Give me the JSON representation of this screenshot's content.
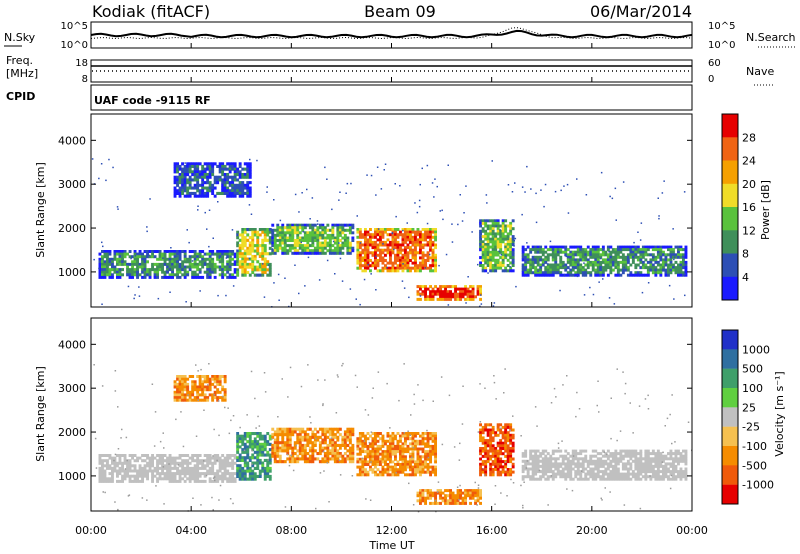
{
  "header": {
    "radar": "Kodiak (fitACF)",
    "beam": "Beam 09",
    "date": "06/Mar/2014"
  },
  "noise_panel": {
    "left_label": "N.Sky",
    "right_label": "N.Search",
    "left_ticks": [
      "10^5",
      "10^0"
    ],
    "right_ticks": [
      "10^5",
      "10^0"
    ]
  },
  "freq_panel": {
    "left_label_1": "Freq.",
    "left_label_2": "[MHz]",
    "right_label": "Nave",
    "left_ticks": [
      "18",
      "8"
    ],
    "right_ticks": [
      "60",
      "0"
    ]
  },
  "cpid_panel": {
    "label": "CPID",
    "text": "UAF code -9115 RF"
  },
  "chart_data": [
    {
      "type": "heatmap",
      "name": "power",
      "ylabel": "Slant Range [km]",
      "yticks": [
        1000,
        2000,
        3000,
        4000
      ],
      "ylim": [
        200,
        4600
      ],
      "xlim": [
        0,
        24
      ],
      "colorbar_label": "Power [dB]",
      "colorbar_ticks": [
        "4",
        "8",
        "12",
        "16",
        "20",
        "24",
        "28"
      ],
      "colorbar_colors": [
        "#1a1aff",
        "#2d4fb5",
        "#3f8f5a",
        "#59c23c",
        "#f0dc28",
        "#f5a000",
        "#f06414",
        "#e60000"
      ],
      "regions": [
        {
          "t0": 0.3,
          "t1": 5.8,
          "r0": 850,
          "r1": 1500,
          "value": 10
        },
        {
          "t0": 3.3,
          "t1": 6.4,
          "r0": 2700,
          "r1": 3500,
          "value": 6
        },
        {
          "t0": 5.8,
          "t1": 7.2,
          "r0": 900,
          "r1": 2000,
          "value": 16
        },
        {
          "t0": 7.2,
          "t1": 10.5,
          "r0": 1400,
          "r1": 2100,
          "value": 14
        },
        {
          "t0": 10.6,
          "t1": 13.8,
          "r0": 1000,
          "r1": 2000,
          "value": 24
        },
        {
          "t0": 13.0,
          "t1": 15.6,
          "r0": 350,
          "r1": 700,
          "value": 28
        },
        {
          "t0": 15.5,
          "t1": 16.9,
          "r0": 1000,
          "r1": 2200,
          "value": 12
        },
        {
          "t0": 17.2,
          "t1": 23.8,
          "r0": 900,
          "r1": 1600,
          "value": 10
        }
      ]
    },
    {
      "type": "heatmap",
      "name": "velocity",
      "ylabel": "Slant Range [km]",
      "yticks": [
        1000,
        2000,
        3000,
        4000
      ],
      "ylim": [
        200,
        4600
      ],
      "xlim": [
        0,
        24
      ],
      "xlabel": "Time UT",
      "xticks": [
        "00:00",
        "04:00",
        "08:00",
        "12:00",
        "16:00",
        "20:00",
        "00:00"
      ],
      "xtick_hours": [
        0,
        4,
        8,
        12,
        16,
        20,
        24
      ],
      "colorbar_label": "Velocity [m s⁻¹]",
      "colorbar_ticks": [
        "1000",
        "500",
        "100",
        "25",
        "-25",
        "-100",
        "-500",
        "-1000"
      ],
      "colorbar_colors": [
        "#2030c8",
        "#2f6fa0",
        "#3f9f6a",
        "#60d040",
        "#c0c0c0",
        "#f5c050",
        "#f58c00",
        "#f05a0a",
        "#e60000"
      ],
      "regions": [
        {
          "t0": 0.3,
          "t1": 5.8,
          "r0": 850,
          "r1": 1500,
          "value": 0
        },
        {
          "t0": 3.3,
          "t1": 5.4,
          "r0": 2700,
          "r1": 3300,
          "value": -150
        },
        {
          "t0": 5.8,
          "t1": 7.2,
          "r0": 900,
          "r1": 2000,
          "value": 300
        },
        {
          "t0": 7.2,
          "t1": 10.5,
          "r0": 1300,
          "r1": 2100,
          "value": -300
        },
        {
          "t0": 10.6,
          "t1": 13.8,
          "r0": 1000,
          "r1": 2000,
          "value": -300
        },
        {
          "t0": 13.0,
          "t1": 15.6,
          "r0": 350,
          "r1": 700,
          "value": -100
        },
        {
          "t0": 15.5,
          "t1": 16.9,
          "r0": 1000,
          "r1": 2200,
          "value": -700
        },
        {
          "t0": 17.2,
          "t1": 23.8,
          "r0": 900,
          "r1": 1600,
          "value": 0
        }
      ]
    }
  ]
}
